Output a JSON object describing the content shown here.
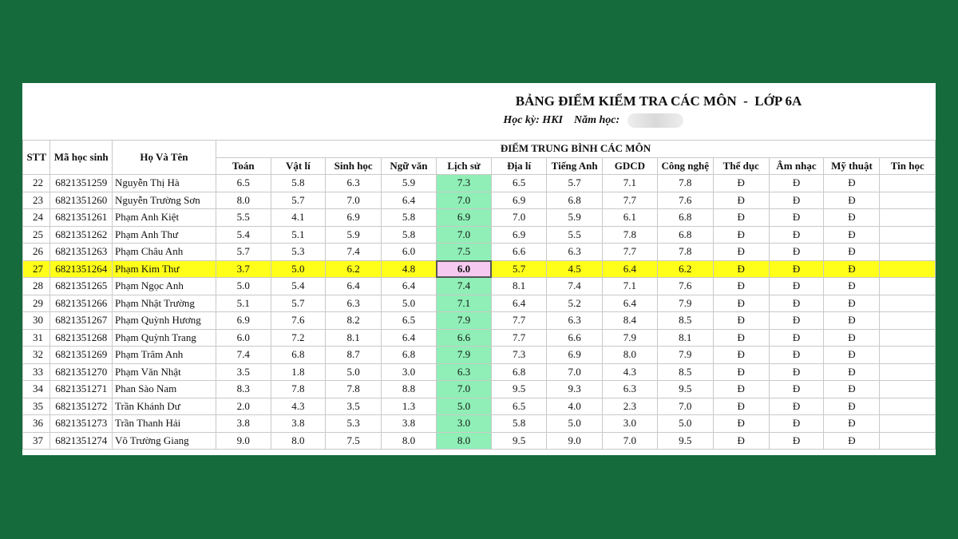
{
  "title": "BẢNG ĐIỂM KIỂM TRA CÁC MÔN  -  LỚP 6A",
  "subtitle": {
    "semester_label": "Học kỳ: HKI",
    "year_label": "Năm học:"
  },
  "headers": {
    "stt": "STT",
    "student_id": "Mã học sinh",
    "full_name": "Họ Và Tên",
    "group": "ĐIỂM TRUNG BÌNH CÁC MÔN",
    "subjects": [
      "Toán",
      "Vật lí",
      "Sinh học",
      "Ngữ văn",
      "Lịch sử",
      "Địa lí",
      "Tiếng Anh",
      "GDCD",
      "Công nghệ",
      "Thể dục",
      "Âm nhạc",
      "Mỹ thuật",
      "Tin học"
    ]
  },
  "rows": [
    {
      "stt": "22",
      "id": "6821351259",
      "name": "Nguyễn Thị Hà",
      "scores": [
        "6.5",
        "5.8",
        "6.3",
        "5.9",
        "7.3",
        "6.5",
        "5.7",
        "7.1",
        "7.8",
        "Đ",
        "Đ",
        "Đ",
        ""
      ]
    },
    {
      "stt": "23",
      "id": "6821351260",
      "name": "Nguyễn Trường Sơn",
      "scores": [
        "8.0",
        "5.7",
        "7.0",
        "6.4",
        "7.0",
        "6.9",
        "6.8",
        "7.7",
        "7.6",
        "Đ",
        "Đ",
        "Đ",
        ""
      ]
    },
    {
      "stt": "24",
      "id": "6821351261",
      "name": "Phạm Anh Kiệt",
      "scores": [
        "5.5",
        "4.1",
        "6.9",
        "5.8",
        "6.9",
        "7.0",
        "5.9",
        "6.1",
        "6.8",
        "Đ",
        "Đ",
        "Đ",
        ""
      ]
    },
    {
      "stt": "25",
      "id": "6821351262",
      "name": "Phạm Anh Thư",
      "scores": [
        "5.4",
        "5.1",
        "5.9",
        "5.8",
        "7.0",
        "6.9",
        "5.5",
        "7.8",
        "6.8",
        "Đ",
        "Đ",
        "Đ",
        ""
      ]
    },
    {
      "stt": "26",
      "id": "6821351263",
      "name": "Phạm Châu Anh",
      "scores": [
        "5.7",
        "5.3",
        "7.4",
        "6.0",
        "7.5",
        "6.6",
        "6.3",
        "7.7",
        "7.8",
        "Đ",
        "Đ",
        "Đ",
        ""
      ]
    },
    {
      "stt": "27",
      "id": "6821351264",
      "name": "Phạm Kim Thư",
      "scores": [
        "3.7",
        "5.0",
        "6.2",
        "4.8",
        "6.0",
        "5.7",
        "4.5",
        "6.4",
        "6.2",
        "Đ",
        "Đ",
        "Đ",
        ""
      ]
    },
    {
      "stt": "28",
      "id": "6821351265",
      "name": "Phạm Ngọc Anh",
      "scores": [
        "5.0",
        "5.4",
        "6.4",
        "6.4",
        "7.4",
        "8.1",
        "7.4",
        "7.1",
        "7.6",
        "Đ",
        "Đ",
        "Đ",
        ""
      ]
    },
    {
      "stt": "29",
      "id": "6821351266",
      "name": "Phạm Nhật Trường",
      "scores": [
        "5.1",
        "5.7",
        "6.3",
        "5.0",
        "7.1",
        "6.4",
        "5.2",
        "6.4",
        "7.9",
        "Đ",
        "Đ",
        "Đ",
        ""
      ]
    },
    {
      "stt": "30",
      "id": "6821351267",
      "name": "Phạm Quỳnh Hương",
      "scores": [
        "6.9",
        "7.6",
        "8.2",
        "6.5",
        "7.9",
        "7.7",
        "6.3",
        "8.4",
        "8.5",
        "Đ",
        "Đ",
        "Đ",
        ""
      ]
    },
    {
      "stt": "31",
      "id": "6821351268",
      "name": "Phạm Quỳnh Trang",
      "scores": [
        "6.0",
        "7.2",
        "8.1",
        "6.4",
        "6.6",
        "7.7",
        "6.6",
        "7.9",
        "8.1",
        "Đ",
        "Đ",
        "Đ",
        ""
      ]
    },
    {
      "stt": "32",
      "id": "6821351269",
      "name": "Phạm Trâm Anh",
      "scores": [
        "7.4",
        "6.8",
        "8.7",
        "6.8",
        "7.9",
        "7.3",
        "6.9",
        "8.0",
        "7.9",
        "Đ",
        "Đ",
        "Đ",
        ""
      ]
    },
    {
      "stt": "33",
      "id": "6821351270",
      "name": "Phạm Văn Nhật",
      "scores": [
        "3.5",
        "1.8",
        "5.0",
        "3.0",
        "6.3",
        "6.8",
        "7.0",
        "4.3",
        "8.5",
        "Đ",
        "Đ",
        "Đ",
        ""
      ]
    },
    {
      "stt": "34",
      "id": "6821351271",
      "name": "Phan Sào Nam",
      "scores": [
        "8.3",
        "7.8",
        "7.8",
        "8.8",
        "7.0",
        "9.5",
        "9.3",
        "6.3",
        "9.5",
        "Đ",
        "Đ",
        "Đ",
        ""
      ]
    },
    {
      "stt": "35",
      "id": "6821351272",
      "name": "Trần Khánh Dư",
      "scores": [
        "2.0",
        "4.3",
        "3.5",
        "1.3",
        "5.0",
        "6.5",
        "4.0",
        "2.3",
        "7.0",
        "Đ",
        "Đ",
        "Đ",
        ""
      ]
    },
    {
      "stt": "36",
      "id": "6821351273",
      "name": "Trần Thanh Hải",
      "scores": [
        "3.8",
        "3.8",
        "5.3",
        "3.8",
        "3.0",
        "5.8",
        "5.0",
        "3.0",
        "5.0",
        "Đ",
        "Đ",
        "Đ",
        ""
      ]
    },
    {
      "stt": "37",
      "id": "6821351274",
      "name": "Võ Trường Giang",
      "scores": [
        "9.0",
        "8.0",
        "7.5",
        "8.0",
        "8.0",
        "9.5",
        "9.0",
        "7.0",
        "9.5",
        "Đ",
        "Đ",
        "Đ",
        ""
      ]
    }
  ],
  "highlight_row_stt": "27",
  "highlight_column_subject": "Lịch sử",
  "colors": {
    "background": "#156b3b",
    "highlight_row": "#ffff1a",
    "highlight_column": "#8fefb6",
    "active_cell": "#f5c9f0"
  }
}
